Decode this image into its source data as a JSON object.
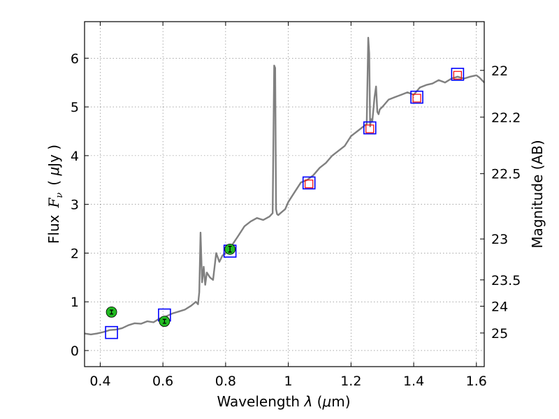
{
  "chart_data": {
    "type": "line",
    "xlabel": "Wavelength  λ (μm)",
    "ylabel": "Flux  F_ν  ( μJy )",
    "ylabel_parts": {
      "flux": "Flux",
      "F": "F",
      "nu": "ν",
      "open": "( ",
      "mu": "μ",
      "unit": "Jy )"
    },
    "xlabel_parts": {
      "text": "Wavelength  ",
      "lambda": "λ",
      "open": " (",
      "mu": "μ",
      "unit": "m)"
    },
    "y2label": "Magnitude (AB)",
    "xlim": [
      0.35,
      1.625
    ],
    "ylim": [
      -0.33,
      6.75
    ],
    "grid": true,
    "x_ticks": [
      {
        "value": 0.4,
        "label": "0.4"
      },
      {
        "value": 0.6,
        "label": "0.6"
      },
      {
        "value": 0.8,
        "label": "0.8"
      },
      {
        "value": 1.0,
        "label": "1"
      },
      {
        "value": 1.2,
        "label": "1.2"
      },
      {
        "value": 1.4,
        "label": "1.4"
      },
      {
        "value": 1.6,
        "label": "1.6"
      }
    ],
    "y_ticks": [
      {
        "value": 0,
        "label": "0"
      },
      {
        "value": 1,
        "label": "1"
      },
      {
        "value": 2,
        "label": "2"
      },
      {
        "value": 3,
        "label": "3"
      },
      {
        "value": 4,
        "label": "4"
      },
      {
        "value": 5,
        "label": "5"
      },
      {
        "value": 6,
        "label": "6"
      }
    ],
    "mag_ticks": [
      {
        "label": "22",
        "flux": 5.75
      },
      {
        "label": "22.2",
        "flux": 4.79
      },
      {
        "label": "22.5",
        "flux": 3.63
      },
      {
        "label": "23",
        "flux": 2.29
      },
      {
        "label": "23.5",
        "flux": 1.45
      },
      {
        "label": "24",
        "flux": 0.91
      },
      {
        "label": "25",
        "flux": 0.36
      }
    ],
    "series": [
      {
        "name": "model-spectrum",
        "color": "#808080",
        "x": [
          0.35,
          0.37,
          0.39,
          0.41,
          0.43,
          0.45,
          0.47,
          0.49,
          0.51,
          0.53,
          0.55,
          0.57,
          0.59,
          0.6,
          0.61,
          0.63,
          0.65,
          0.67,
          0.69,
          0.705,
          0.712,
          0.716,
          0.72,
          0.725,
          0.73,
          0.735,
          0.74,
          0.75,
          0.76,
          0.77,
          0.78,
          0.79,
          0.8,
          0.82,
          0.84,
          0.86,
          0.88,
          0.9,
          0.92,
          0.94,
          0.95,
          0.955,
          0.958,
          0.961,
          0.964,
          0.968,
          0.975,
          0.99,
          1.0,
          1.02,
          1.04,
          1.06,
          1.08,
          1.1,
          1.12,
          1.14,
          1.16,
          1.18,
          1.2,
          1.22,
          1.24,
          1.25,
          1.255,
          1.258,
          1.261,
          1.264,
          1.268,
          1.275,
          1.28,
          1.284,
          1.288,
          1.292,
          1.3,
          1.32,
          1.34,
          1.36,
          1.38,
          1.4,
          1.42,
          1.44,
          1.46,
          1.48,
          1.5,
          1.52,
          1.54,
          1.56,
          1.58,
          1.6,
          1.61,
          1.625
        ],
        "y": [
          0.35,
          0.33,
          0.35,
          0.38,
          0.42,
          0.43,
          0.46,
          0.52,
          0.56,
          0.55,
          0.6,
          0.58,
          0.66,
          0.6,
          0.7,
          0.76,
          0.8,
          0.84,
          0.92,
          1.0,
          0.95,
          1.2,
          2.42,
          1.4,
          1.72,
          1.35,
          1.6,
          1.5,
          1.45,
          2.0,
          1.82,
          1.95,
          2.0,
          2.16,
          2.35,
          2.55,
          2.65,
          2.72,
          2.68,
          2.75,
          2.82,
          5.85,
          5.8,
          2.9,
          2.8,
          2.78,
          2.82,
          2.9,
          3.05,
          3.25,
          3.45,
          3.5,
          3.6,
          3.75,
          3.85,
          4.0,
          4.1,
          4.2,
          4.4,
          4.5,
          4.6,
          4.65,
          6.42,
          6.1,
          4.6,
          4.75,
          4.7,
          5.2,
          5.42,
          4.9,
          4.85,
          4.95,
          5.0,
          5.15,
          5.2,
          5.25,
          5.3,
          5.25,
          5.4,
          5.45,
          5.48,
          5.55,
          5.5,
          5.58,
          5.62,
          5.58,
          5.62,
          5.65,
          5.6,
          5.5
        ]
      }
    ],
    "model_points": {
      "name": "model-photometry",
      "edge_color": "#0000ff",
      "points": [
        {
          "x": 0.436,
          "y": 0.37
        },
        {
          "x": 0.605,
          "y": 0.73
        },
        {
          "x": 0.814,
          "y": 2.04
        },
        {
          "x": 1.066,
          "y": 3.44
        },
        {
          "x": 1.26,
          "y": 4.57
        },
        {
          "x": 1.41,
          "y": 5.2
        },
        {
          "x": 1.54,
          "y": 5.67
        }
      ]
    },
    "synthetic_points": {
      "name": "inner-markers",
      "edge_color": "#ff0000",
      "points": [
        {
          "x": 1.066,
          "y": 3.42
        },
        {
          "x": 1.26,
          "y": 4.55
        },
        {
          "x": 1.41,
          "y": 5.18
        },
        {
          "x": 1.54,
          "y": 5.65
        }
      ]
    },
    "observed_points": {
      "name": "observed-photometry",
      "color": "#22bb22",
      "points": [
        {
          "x": 0.436,
          "y": 0.79,
          "err": 0.04
        },
        {
          "x": 0.605,
          "y": 0.6,
          "err": 0.04
        },
        {
          "x": 0.814,
          "y": 2.08,
          "err": 0.06
        }
      ]
    }
  }
}
